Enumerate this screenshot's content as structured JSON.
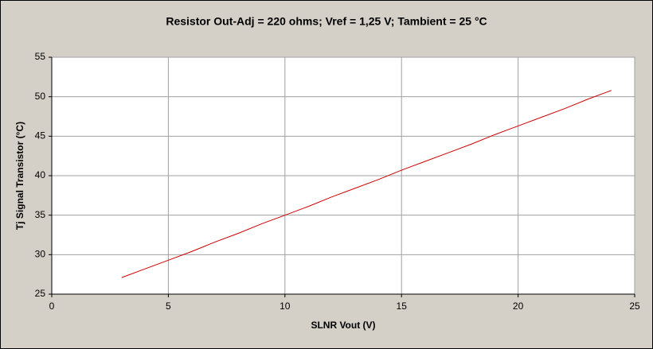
{
  "chart_data": {
    "type": "line",
    "title": "Resistor Out-Adj = 220 ohms; Vref = 1,25 V; Tambient = 25 °C",
    "x_label": "SLNR Vout (V)",
    "y_label": "Tj Signal Transistor (°C)",
    "x": [
      3,
      4,
      5,
      6,
      7,
      8,
      9,
      10,
      11,
      12,
      13,
      14,
      15,
      16,
      17,
      18,
      19,
      20,
      21,
      22,
      23,
      24
    ],
    "values": [
      27.1,
      28.2,
      29.3,
      30.4,
      31.6,
      32.7,
      33.9,
      35.0,
      36.1,
      37.3,
      38.4,
      39.5,
      40.7,
      41.8,
      42.9,
      44.0,
      45.2,
      46.3,
      47.4,
      48.5,
      49.7,
      50.8
    ],
    "color": "#cc0000",
    "xlim": [
      0,
      25
    ],
    "xticks": [
      0,
      5,
      10,
      15,
      20,
      25
    ],
    "ylim": [
      25,
      55
    ],
    "yticks": [
      25,
      30,
      35,
      40,
      45,
      50,
      55
    ],
    "grid": true
  }
}
